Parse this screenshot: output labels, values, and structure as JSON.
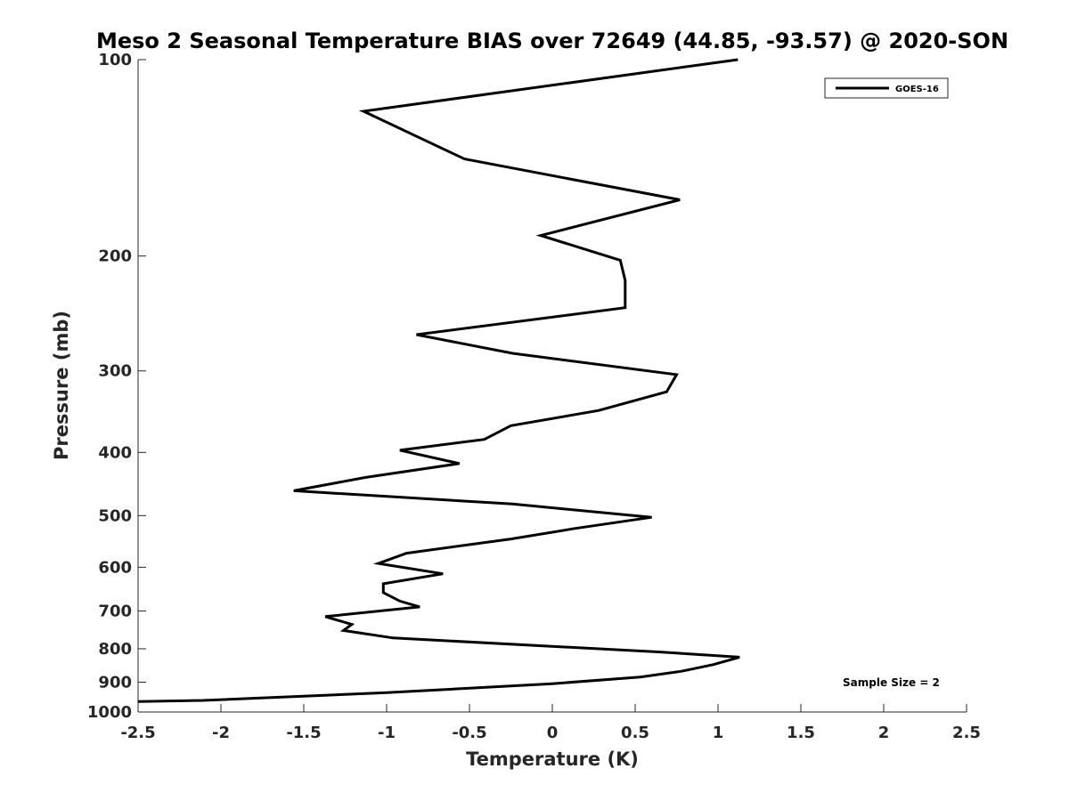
{
  "chart_data": {
    "type": "line",
    "title": "Meso 2 Seasonal Temperature BIAS over 72649 (44.85, -93.57) @ 2020-SON",
    "xlabel": "Temperature (K)",
    "ylabel": "Pressure (mb)",
    "xlim": [
      -2.5,
      2.5
    ],
    "ylim": [
      100,
      1000
    ],
    "y_scale": "log",
    "y_reversed": true,
    "grid": false,
    "legend_position": "top-right",
    "x_ticks": [
      "-2.5",
      "-2",
      "-1.5",
      "-1",
      "-0.5",
      "0",
      "0.5",
      "1",
      "1.5",
      "2",
      "2.5"
    ],
    "x_tick_values": [
      -2.5,
      -2,
      -1.5,
      -1,
      -0.5,
      0,
      0.5,
      1,
      1.5,
      2,
      2.5
    ],
    "y_ticks": [
      "100",
      "200",
      "300",
      "400",
      "500",
      "600",
      "700",
      "800",
      "900",
      "1000"
    ],
    "y_tick_values": [
      100,
      200,
      300,
      400,
      500,
      600,
      700,
      800,
      900,
      1000
    ],
    "annotation": "Sample Size = 2",
    "series": [
      {
        "name": "GOES-16",
        "color": "#000000",
        "points": [
          [
            1.12,
            100
          ],
          [
            -1.14,
            120
          ],
          [
            -0.53,
            142
          ],
          [
            0.77,
            164
          ],
          [
            -0.07,
            186
          ],
          [
            0.41,
            203
          ],
          [
            0.44,
            218
          ],
          [
            0.44,
            240
          ],
          [
            -0.82,
            264
          ],
          [
            -0.24,
            282
          ],
          [
            0.75,
            304
          ],
          [
            0.69,
            323
          ],
          [
            0.28,
            345
          ],
          [
            -0.25,
            364
          ],
          [
            -0.41,
            382
          ],
          [
            -0.92,
            397
          ],
          [
            -0.56,
            416
          ],
          [
            -1.13,
            437
          ],
          [
            -1.56,
            458
          ],
          [
            -0.24,
            480
          ],
          [
            0.6,
            503
          ],
          [
            0.14,
            523
          ],
          [
            -0.25,
            543
          ],
          [
            -0.88,
            571
          ],
          [
            -1.05,
            592
          ],
          [
            -0.66,
            614
          ],
          [
            -1.02,
            636
          ],
          [
            -1.02,
            656
          ],
          [
            -0.92,
            676
          ],
          [
            -0.8,
            690
          ],
          [
            -1.37,
            714
          ],
          [
            -1.21,
            734
          ],
          [
            -1.26,
            750
          ],
          [
            -0.96,
            770
          ],
          [
            0.64,
            809
          ],
          [
            1.13,
            824
          ],
          [
            0.97,
            846
          ],
          [
            0.78,
            866
          ],
          [
            0.53,
            884
          ],
          [
            0.0,
            905
          ],
          [
            -1.0,
            934
          ],
          [
            -2.11,
            960
          ],
          [
            -2.5,
            964
          ]
        ]
      }
    ]
  }
}
